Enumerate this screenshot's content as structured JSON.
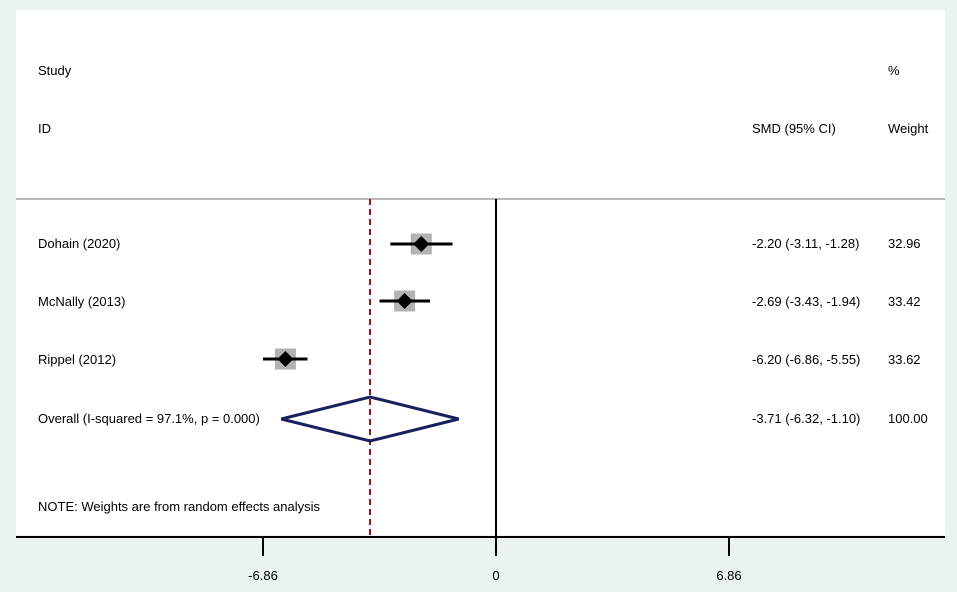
{
  "chart_data": {
    "type": "forest",
    "header": {
      "study_label": "Study",
      "id_label": "ID",
      "effect_label": "SMD (95% CI)",
      "pct_label": "%",
      "weight_label": "Weight"
    },
    "studies": [
      {
        "name": "Dohain (2020)",
        "smd": -2.2,
        "lower": -3.11,
        "upper": -1.28,
        "ci_text": "-2.20 (-3.11, -1.28)",
        "weight": "32.96"
      },
      {
        "name": "McNally (2013)",
        "smd": -2.69,
        "lower": -3.43,
        "upper": -1.94,
        "ci_text": "-2.69 (-3.43, -1.94)",
        "weight": "33.42"
      },
      {
        "name": "Rippel (2012)",
        "smd": -6.2,
        "lower": -6.86,
        "upper": -5.55,
        "ci_text": "-6.20 (-6.86, -5.55)",
        "weight": "33.62"
      }
    ],
    "overall": {
      "label": "Overall  (I-squared = 97.1%, p = 0.000)",
      "smd": -3.71,
      "lower": -6.32,
      "upper": -1.1,
      "ci_text": "-3.71 (-6.32, -1.10)",
      "weight": "100.00"
    },
    "note": "NOTE: Weights are from random effects analysis",
    "x_ticks": [
      -6.86,
      0,
      6.86
    ],
    "x_tick_labels": [
      "-6.86",
      "0",
      "6.86"
    ],
    "null_line": 0,
    "colors": {
      "point": "#000000",
      "weight_box": "#b3b3b3",
      "overall_diamond": "#1a1f5e",
      "overall_line": "#8b1a1a",
      "separator": "#b8b8b8",
      "background": "#eaf2f3"
    }
  }
}
